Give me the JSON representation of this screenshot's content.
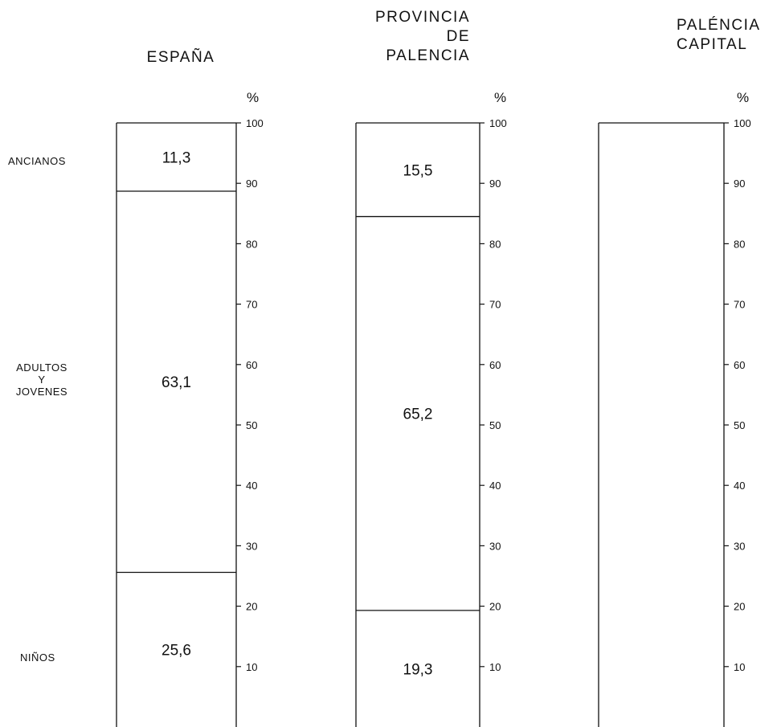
{
  "chart_data": {
    "type": "bar",
    "stacked": true,
    "unit": "%",
    "ylim": [
      0,
      100
    ],
    "yticks": [
      10,
      20,
      30,
      40,
      50,
      60,
      70,
      80,
      90,
      100
    ],
    "row_labels": {
      "niños": "NIÑOS",
      "adultos": [
        "ADULTOS",
        "Y",
        "JOVENES"
      ],
      "ancianos": "ANCIANOS"
    },
    "columns": [
      {
        "title_lines": [
          "ESPAÑA"
        ],
        "segments": [
          {
            "group": "NIÑOS",
            "value": 25.6,
            "label": "25,6"
          },
          {
            "group": "ADULTOS Y JOVENES",
            "value": 63.1,
            "label": "63,1"
          },
          {
            "group": "ANCIANOS",
            "value": 11.3,
            "label": "11,3"
          }
        ]
      },
      {
        "title_lines": [
          "PROVINCIA",
          "DE",
          "PALENCIA"
        ],
        "segments": [
          {
            "group": "NIÑOS",
            "value": 19.3,
            "label": "19,3"
          },
          {
            "group": "ADULTOS Y JOVENES",
            "value": 65.2,
            "label": "65,2"
          },
          {
            "group": "ANCIANOS",
            "value": 15.5,
            "label": "15,5"
          }
        ]
      },
      {
        "title_lines": [
          "PALÉNCIA",
          "CAPITAL"
        ],
        "segments": []
      }
    ]
  }
}
